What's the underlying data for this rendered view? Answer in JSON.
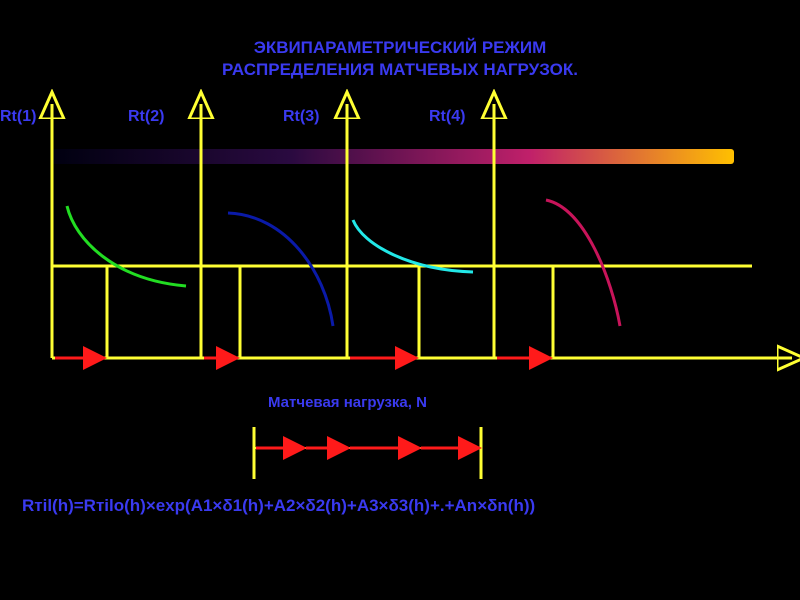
{
  "title": {
    "line1": "ЭКВИПАРАМЕТРИЧЕСКИЙ РЕЖИМ",
    "line2": "РАСПРЕДЕЛЕНИЯ МАТЧЕВЫХ НАГРУЗОК."
  },
  "axes": {
    "labels": [
      "Rt(1)",
      "Rt(2)",
      "Rt(3)",
      "Rt(4)"
    ],
    "x_label": "Матчевая нагрузка, N"
  },
  "formula": "Rтil(h)=Rтilo(h)×exp(A1×δ1(h)+A2×δ2(h)+A3×δ3(h)+.+An×δn(h))",
  "colors": {
    "background": "#000000",
    "text": "#3a3af0",
    "axes": "#ffff33",
    "arrows": "#ff1a1a",
    "curve1": "#22dd22",
    "curve2": "#0a1aa8",
    "curve3": "#22e8e8",
    "curve4": "#c8145a",
    "gradient_start": "#000010",
    "gradient_end": "#ffc000"
  }
}
